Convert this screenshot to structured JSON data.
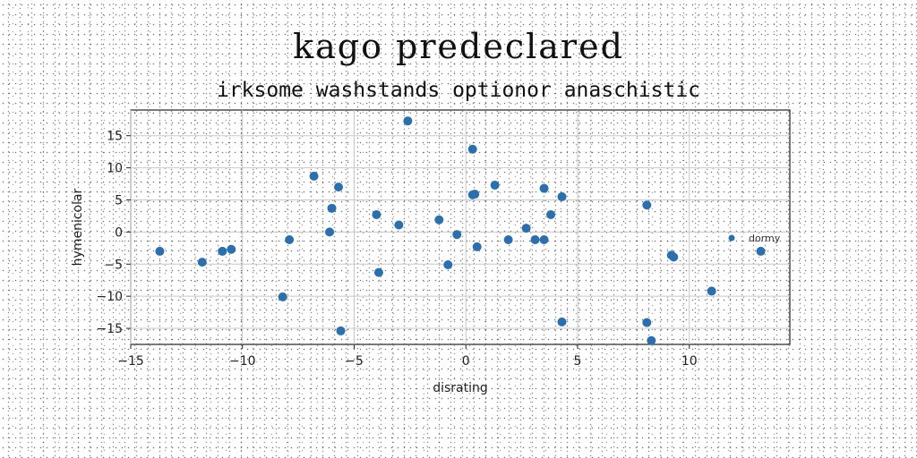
{
  "chart_data": {
    "type": "scatter",
    "title": "kago predeclared",
    "subtitle": "irksome washstands optionor anaschistic",
    "xlabel": "disrating",
    "ylabel": "hymenicolar",
    "xlim": [
      -15,
      14.5
    ],
    "ylim": [
      -17.5,
      19
    ],
    "xticks": [
      -15,
      -10,
      -5,
      0,
      5,
      10
    ],
    "yticks": [
      -15,
      -10,
      -5,
      0,
      5,
      10,
      15
    ],
    "grid": true,
    "legend_position": "right",
    "color": "#2a6fae",
    "series": [
      {
        "name": "dormy",
        "x": [
          -13.7,
          -11.8,
          -10.9,
          -10.5,
          -8.2,
          -7.9,
          -6.8,
          -6.1,
          -6.0,
          -5.7,
          -5.6,
          -4.0,
          -3.9,
          -3.0,
          -2.6,
          -1.2,
          -0.8,
          -0.4,
          0.3,
          0.3,
          0.4,
          0.5,
          1.3,
          1.9,
          2.7,
          3.1,
          3.5,
          3.5,
          3.8,
          4.3,
          4.3,
          8.1,
          8.1,
          8.3,
          9.2,
          9.3,
          11.0,
          13.2
        ],
        "y": [
          -3,
          -4.7,
          -3,
          -2.7,
          -10.1,
          -1.2,
          8.7,
          0,
          3.7,
          7,
          -15.4,
          2.7,
          -6.3,
          1.1,
          17.3,
          1.9,
          -5.1,
          -0.4,
          12.9,
          5.8,
          5.9,
          -2.3,
          7.3,
          -1.2,
          0.6,
          -1.2,
          6.8,
          -1.2,
          2.7,
          5.5,
          -14,
          4.2,
          -14.1,
          -16.9,
          -3.6,
          -3.9,
          -9.2,
          -3
        ]
      }
    ]
  }
}
